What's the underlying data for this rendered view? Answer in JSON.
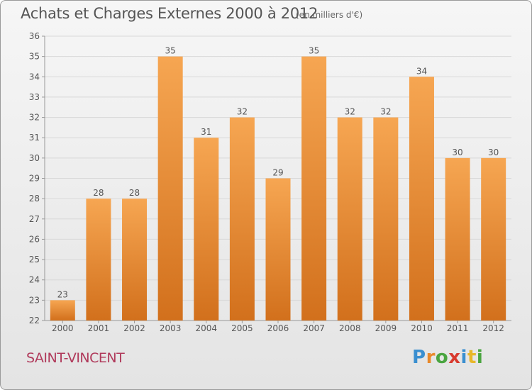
{
  "header": {
    "title": "Achats et Charges Externes 2000 à 2012",
    "unit": "(en milliers d'€)"
  },
  "footer": {
    "place": "SAINT-VINCENT",
    "logo": "Proxiti"
  },
  "logo_letters": [
    {
      "ch": "P",
      "color": "#3a8fd0"
    },
    {
      "ch": "r",
      "color": "#e8892a"
    },
    {
      "ch": "o",
      "color": "#4aa540"
    },
    {
      "ch": "x",
      "color": "#d83a2e"
    },
    {
      "ch": "i",
      "color": "#3a8fd0"
    },
    {
      "ch": "t",
      "color": "#e8b72a"
    },
    {
      "ch": "i",
      "color": "#4aa540"
    }
  ],
  "colors": {
    "bar_light": "#f6a652",
    "bar_dark": "#d2701c",
    "grid": "#d8d8d8",
    "axis": "#999999",
    "text": "#555555"
  },
  "chart_data": {
    "type": "bar",
    "title": "Achats et Charges Externes 2000 à 2012",
    "subtitle": "(en milliers d'€)",
    "categories": [
      "2000",
      "2001",
      "2002",
      "2003",
      "2004",
      "2005",
      "2006",
      "2007",
      "2008",
      "2009",
      "2010",
      "2011",
      "2012"
    ],
    "values": [
      23,
      28,
      28,
      35,
      31,
      32,
      29,
      35,
      32,
      32,
      34,
      30,
      30
    ],
    "ylim": [
      22,
      36
    ],
    "yticks": [
      22,
      23,
      24,
      25,
      26,
      27,
      28,
      29,
      30,
      31,
      32,
      33,
      34,
      35,
      36
    ],
    "grid": true,
    "data_labels": true
  }
}
